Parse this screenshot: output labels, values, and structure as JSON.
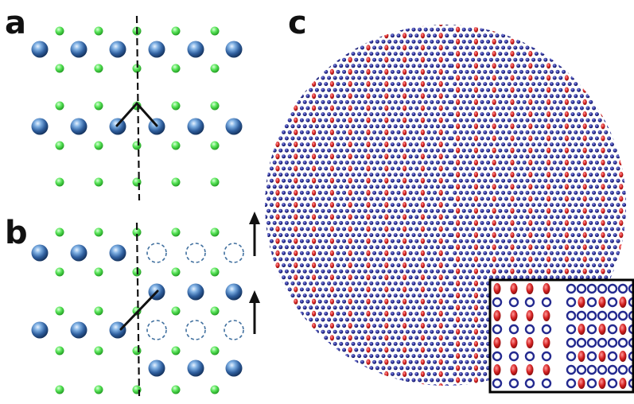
{
  "panels": {
    "a": {
      "label": "a"
    },
    "b": {
      "label": "b"
    },
    "c": {
      "label": "c"
    }
  },
  "colors": {
    "large_atom": "#2f5f9e",
    "small_atom": "#3fd93f",
    "vacancy_outline": "#41709f",
    "red_atom": "#d42020",
    "blue_atom": "#242a8f",
    "boundary_line": "#111111",
    "bond": "#111111",
    "inset_border": "#000000"
  },
  "icons": {
    "shift_arrow": "up-arrow-icon",
    "vacancy": "dashed-circle-icon"
  }
}
